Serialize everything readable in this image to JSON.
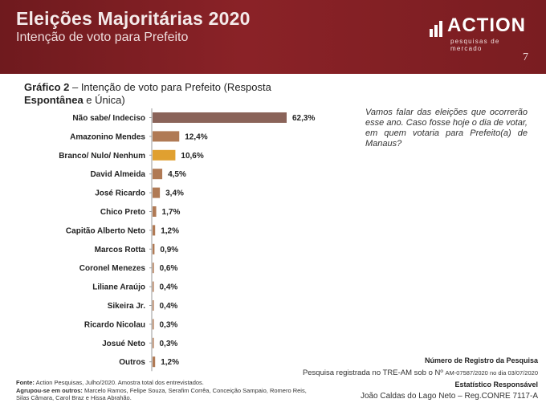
{
  "header": {
    "title": "Eleições Majoritárias 2020",
    "subtitle": "Intenção de voto para Prefeito",
    "logo_text": "ACTION",
    "logo_tagline": "pesquisas de mercado",
    "page_number": "7",
    "colors": {
      "bg": "#7a1d21",
      "text": "#f4eaea"
    }
  },
  "chart_title": {
    "prefix": "Gráfico 2",
    "separator": " – Intenção de voto para Prefeito (Resposta ",
    "bold_word": "Espontânea",
    "suffix": " e Única)"
  },
  "question": "Vamos falar das eleições que ocorrerão esse ano. Caso fosse hoje o dia de votar, em quem votaria para Prefeito(a) de Manaus?",
  "chart_data": {
    "type": "bar",
    "orientation": "horizontal",
    "title": "Intenção de voto para Prefeito (Resposta Espontânea e Única)",
    "xlabel": "",
    "ylabel": "",
    "xlim": [
      0,
      62.3
    ],
    "grid": false,
    "categories": [
      "Não sabe/ Indeciso",
      "Amazonino Mendes",
      "Branco/ Nulo/ Nenhum",
      "David Almeida",
      "José Ricardo",
      "Chico Preto",
      "Capitão Alberto Neto",
      "Marcos Rotta",
      "Coronel Menezes",
      "Liliane Araújo",
      "Sikeira Jr.",
      "Ricardo Nicolau",
      "Josué Neto",
      "Outros"
    ],
    "values": [
      62.3,
      12.4,
      10.6,
      4.5,
      3.4,
      1.7,
      1.2,
      0.9,
      0.6,
      0.4,
      0.4,
      0.3,
      0.3,
      1.2
    ],
    "labels": [
      "62,3%",
      "12,4%",
      "10,6%",
      "4,5%",
      "3,4%",
      "1,7%",
      "1,2%",
      "0,9%",
      "0,6%",
      "0,4%",
      "0,4%",
      "0,3%",
      "0,3%",
      "1,2%"
    ],
    "colors": [
      "#8a6359",
      "#b07a55",
      "#e0a030",
      "#b07a55",
      "#b07a55",
      "#b07a55",
      "#b07a55",
      "#b07a55",
      "#b07a55",
      "#b07a55",
      "#b07a55",
      "#b07a55",
      "#b07a55",
      "#b07a55"
    ],
    "axis_color": "#999999"
  },
  "registration": {
    "title": "Número de Registro da Pesquisa",
    "text_main": "Pesquisa registrada no TRE-AM sob o Nº ",
    "text_small": "AM-07587/2020 no dia 03/07/2020",
    "statistician_title": "Estatístico Responsável",
    "statistician_name": "João Caldas do Lago Neto – Reg.CONRE 7117-A"
  },
  "source": {
    "label": "Fonte:",
    "text": " Action Pesquisas, Julho/2020. Amostra total dos entrevistados.",
    "group_label": "Agrupou-se em outros:",
    "group_text": " Marcelo Ramos, Felipe Souza, Serafim Corrêa, Conceição Sampaio, Romero Reis, Silas Câmara, Carol Braz e Hissa Abrahão."
  }
}
